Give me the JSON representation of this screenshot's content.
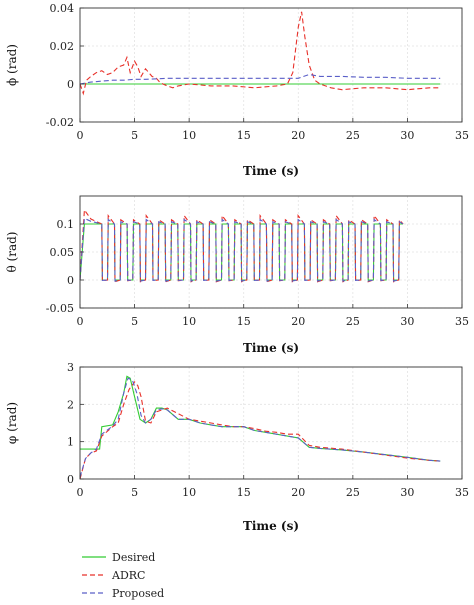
{
  "series_styles": {
    "Desired": {
      "color": "#33cc33",
      "dash": ""
    },
    "ADRC": {
      "color": "#e8312a",
      "dash": "5 3"
    },
    "Proposed": {
      "color": "#5a5fc8",
      "dash": "5 3"
    }
  },
  "legend": {
    "placement": "bottom-left",
    "entries": [
      "Desired",
      "ADRC",
      "Proposed"
    ]
  },
  "chart_data": [
    {
      "type": "line",
      "xlabel": "Time (s)",
      "ylabel": "ϕ (rad)",
      "xlim": [
        0,
        35
      ],
      "ylim": [
        -0.02,
        0.04
      ],
      "xticks": [
        0,
        5,
        10,
        15,
        20,
        25,
        30,
        35
      ],
      "yticks": [
        -0.02,
        0,
        0.02,
        0.04
      ],
      "ytick_labels": [
        "-0.02",
        "0",
        "0.02",
        "0.04"
      ],
      "grid": true,
      "series": [
        {
          "name": "Desired",
          "x": [
            0,
            33
          ],
          "y": [
            0,
            0
          ]
        },
        {
          "name": "ADRC",
          "x": [
            0,
            0.3,
            0.6,
            1,
            1.5,
            2,
            2.5,
            3,
            3.5,
            4,
            4.3,
            4.6,
            5,
            5.3,
            5.6,
            6,
            6.3,
            6.6,
            7,
            7.3,
            7.6,
            8,
            8.5,
            9,
            10,
            12,
            14,
            16,
            18,
            19,
            19.5,
            20,
            20.3,
            20.6,
            21,
            21.5,
            22,
            23,
            24,
            26,
            28,
            30,
            32,
            33
          ],
          "y": [
            0,
            -0.005,
            0.002,
            0.004,
            0.006,
            0.007,
            0.005,
            0.006,
            0.009,
            0.01,
            0.014,
            0.006,
            0.012,
            0.009,
            0.004,
            0.008,
            0.006,
            0.004,
            0.003,
            0.001,
            0.0,
            -0.001,
            -0.002,
            -0.001,
            0.0,
            -0.001,
            -0.001,
            -0.002,
            -0.001,
            0.0,
            0.006,
            0.03,
            0.038,
            0.025,
            0.01,
            0.002,
            0.0,
            -0.002,
            -0.003,
            -0.002,
            -0.002,
            -0.003,
            -0.002,
            -0.002
          ]
        },
        {
          "name": "Proposed",
          "x": [
            0,
            0.5,
            1,
            2,
            3,
            4,
            5,
            6,
            8,
            10,
            12,
            14,
            16,
            18,
            20,
            20.5,
            21,
            22,
            24,
            26,
            28,
            30,
            32,
            33
          ],
          "y": [
            0,
            0.0005,
            0.001,
            0.0015,
            0.002,
            0.002,
            0.0025,
            0.0025,
            0.003,
            0.003,
            0.003,
            0.003,
            0.003,
            0.003,
            0.003,
            0.004,
            0.005,
            0.004,
            0.004,
            0.0035,
            0.0035,
            0.003,
            0.003,
            0.003
          ]
        }
      ]
    },
    {
      "type": "line",
      "xlabel": "Time (s)",
      "ylabel": "θ (rad)",
      "xlim": [
        0,
        35
      ],
      "ylim": [
        -0.05,
        0.15
      ],
      "xticks": [
        0,
        5,
        10,
        15,
        20,
        25,
        30,
        35
      ],
      "yticks": [
        -0.05,
        0,
        0.05,
        0.1
      ],
      "ytick_labels": [
        "-0.05",
        "0",
        "0.05",
        "0.1"
      ],
      "grid": true,
      "series": [
        {
          "name": "Desired",
          "square_wave": {
            "start": 0,
            "end": 29.6,
            "period": 1.16,
            "duty": 0.55,
            "high": 0.1,
            "low": 0,
            "hold_until": 2.0
          }
        },
        {
          "name": "ADRC",
          "square_wave": {
            "start": 0,
            "end": 29.6,
            "period": 1.16,
            "duty": 0.55,
            "high": 0.1,
            "low": 0,
            "hold_until": 2.0,
            "overshoot": 0.015,
            "undershoot": 0.003,
            "initial_peak": 0.125
          }
        },
        {
          "name": "Proposed",
          "square_wave": {
            "start": 0,
            "end": 29.6,
            "period": 1.16,
            "duty": 0.55,
            "high": 0.1,
            "low": 0,
            "hold_until": 2.0,
            "overshoot": 0.008,
            "undershoot": 0.002,
            "initial_peak": 0.11
          }
        }
      ]
    },
    {
      "type": "line",
      "xlabel": "Time (s)",
      "ylabel": "φ (rad)",
      "xlim": [
        0,
        35
      ],
      "ylim": [
        0,
        3
      ],
      "xticks": [
        0,
        5,
        10,
        15,
        20,
        25,
        30,
        35
      ],
      "yticks": [
        0,
        1,
        2,
        3
      ],
      "ytick_labels": [
        "0",
        "1",
        "2",
        "3"
      ],
      "grid": true,
      "series": [
        {
          "name": "Desired",
          "x": [
            0,
            1.8,
            2,
            3,
            3.5,
            4,
            4.3,
            4.6,
            5,
            5.5,
            6,
            6.5,
            7,
            7.5,
            8,
            9,
            10,
            11,
            12,
            13,
            14,
            15,
            16,
            17,
            18,
            19,
            20,
            21,
            22,
            24,
            26,
            28,
            30,
            32,
            33
          ],
          "y": [
            0.8,
            0.8,
            1.4,
            1.45,
            1.8,
            2.3,
            2.75,
            2.7,
            2.2,
            1.6,
            1.5,
            1.6,
            1.9,
            1.9,
            1.85,
            1.6,
            1.6,
            1.5,
            1.45,
            1.4,
            1.4,
            1.4,
            1.3,
            1.25,
            1.2,
            1.15,
            1.1,
            0.85,
            0.82,
            0.78,
            0.72,
            0.65,
            0.58,
            0.5,
            0.48
          ]
        },
        {
          "name": "ADRC",
          "x": [
            0,
            0.5,
            1,
            1.5,
            2,
            3,
            3.5,
            4,
            4.5,
            5,
            5.3,
            5.6,
            6,
            6.5,
            7,
            7.5,
            8,
            9,
            10,
            11,
            12,
            13,
            14,
            15,
            16,
            17,
            18,
            19,
            20,
            20.5,
            21,
            22,
            24,
            26,
            28,
            30,
            32,
            33
          ],
          "y": [
            0,
            0.55,
            0.7,
            0.75,
            1.15,
            1.4,
            1.5,
            2.0,
            2.4,
            2.6,
            2.5,
            2.2,
            1.55,
            1.5,
            1.8,
            1.85,
            1.9,
            1.75,
            1.6,
            1.55,
            1.5,
            1.45,
            1.4,
            1.4,
            1.35,
            1.28,
            1.25,
            1.2,
            1.2,
            1.05,
            0.9,
            0.85,
            0.8,
            0.72,
            0.64,
            0.56,
            0.5,
            0.48
          ]
        },
        {
          "name": "Proposed",
          "x": [
            0,
            0.5,
            1,
            1.5,
            2,
            3,
            3.5,
            4,
            4.4,
            4.8,
            5.2,
            5.6,
            6,
            6.5,
            7,
            7.5,
            8,
            9,
            10,
            11,
            12,
            13,
            14,
            15,
            16,
            17,
            18,
            19,
            20,
            21,
            22,
            24,
            26,
            28,
            30,
            32,
            33
          ],
          "y": [
            0.05,
            0.55,
            0.7,
            0.8,
            1.2,
            1.42,
            1.6,
            2.3,
            2.7,
            2.65,
            2.3,
            1.7,
            1.5,
            1.6,
            1.85,
            1.88,
            1.85,
            1.6,
            1.6,
            1.5,
            1.45,
            1.4,
            1.4,
            1.4,
            1.3,
            1.25,
            1.2,
            1.15,
            1.1,
            0.85,
            0.82,
            0.78,
            0.72,
            0.65,
            0.58,
            0.5,
            0.48
          ]
        }
      ]
    }
  ]
}
